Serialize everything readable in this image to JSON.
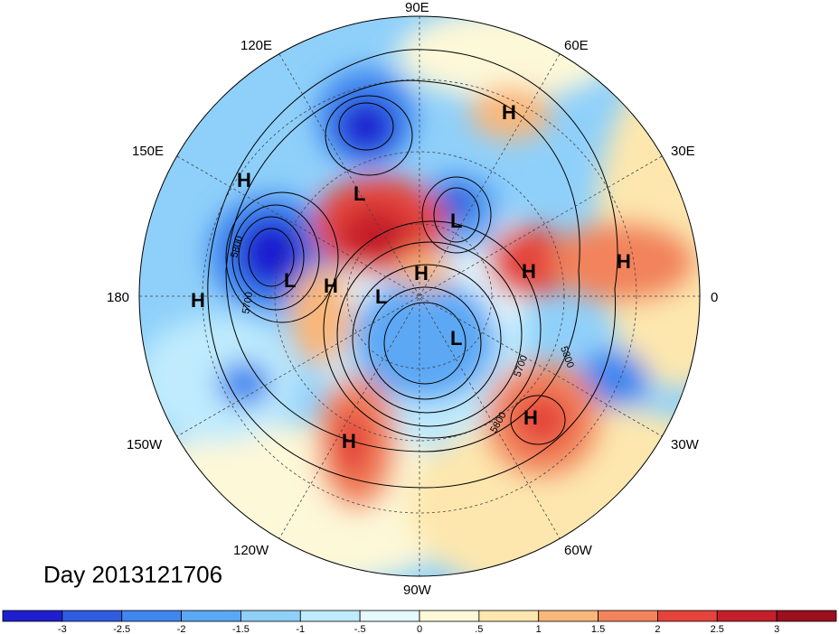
{
  "map": {
    "projection": "north polar stereographic",
    "day_label": "Day 2013121706",
    "longitude_labels": [
      "90E",
      "120E",
      "60E",
      "150E",
      "30E",
      "180",
      "0",
      "150W",
      "30W",
      "120W",
      "60W",
      "90W"
    ],
    "contour_labels": [
      "5800",
      "5700",
      "5700",
      "5800",
      "5800"
    ],
    "pressure_centers": [
      {
        "type": "H",
        "lon_hint": "north Asia"
      },
      {
        "type": "H",
        "lon_hint": "NW Pacific"
      },
      {
        "type": "L",
        "lon_hint": "east Siberia"
      },
      {
        "type": "L",
        "lon_hint": "Arctic"
      },
      {
        "type": "L",
        "lon_hint": "Pacific"
      },
      {
        "type": "H",
        "lon_hint": "Bering"
      },
      {
        "type": "H",
        "lon_hint": "Dateline"
      },
      {
        "type": "H",
        "lon_hint": "Arctic"
      },
      {
        "type": "H",
        "lon_hint": "Scandinavia"
      },
      {
        "type": "H",
        "lon_hint": "Europe"
      },
      {
        "type": "L",
        "lon_hint": "Beaufort"
      },
      {
        "type": "L",
        "lon_hint": "Canada"
      },
      {
        "type": "H",
        "lon_hint": "North Atlantic"
      },
      {
        "type": "H",
        "lon_hint": "Western US"
      }
    ]
  },
  "colorbar": {
    "tick_labels": [
      "-3",
      "-2.5",
      "-2",
      "-1.5",
      "-1",
      "-.5",
      "0",
      ".5",
      "1",
      "1.5",
      "2",
      "2.5",
      "3"
    ],
    "colors": [
      "#1f1fd0",
      "#2f5ce0",
      "#3f86ef",
      "#5ba8f5",
      "#8fd0fa",
      "#bfebfd",
      "#e4f8fd",
      "#fdf8d8",
      "#fde7ae",
      "#f9b77a",
      "#f2835c",
      "#e4443b",
      "#c51f2c",
      "#9c0f1e"
    ]
  }
}
